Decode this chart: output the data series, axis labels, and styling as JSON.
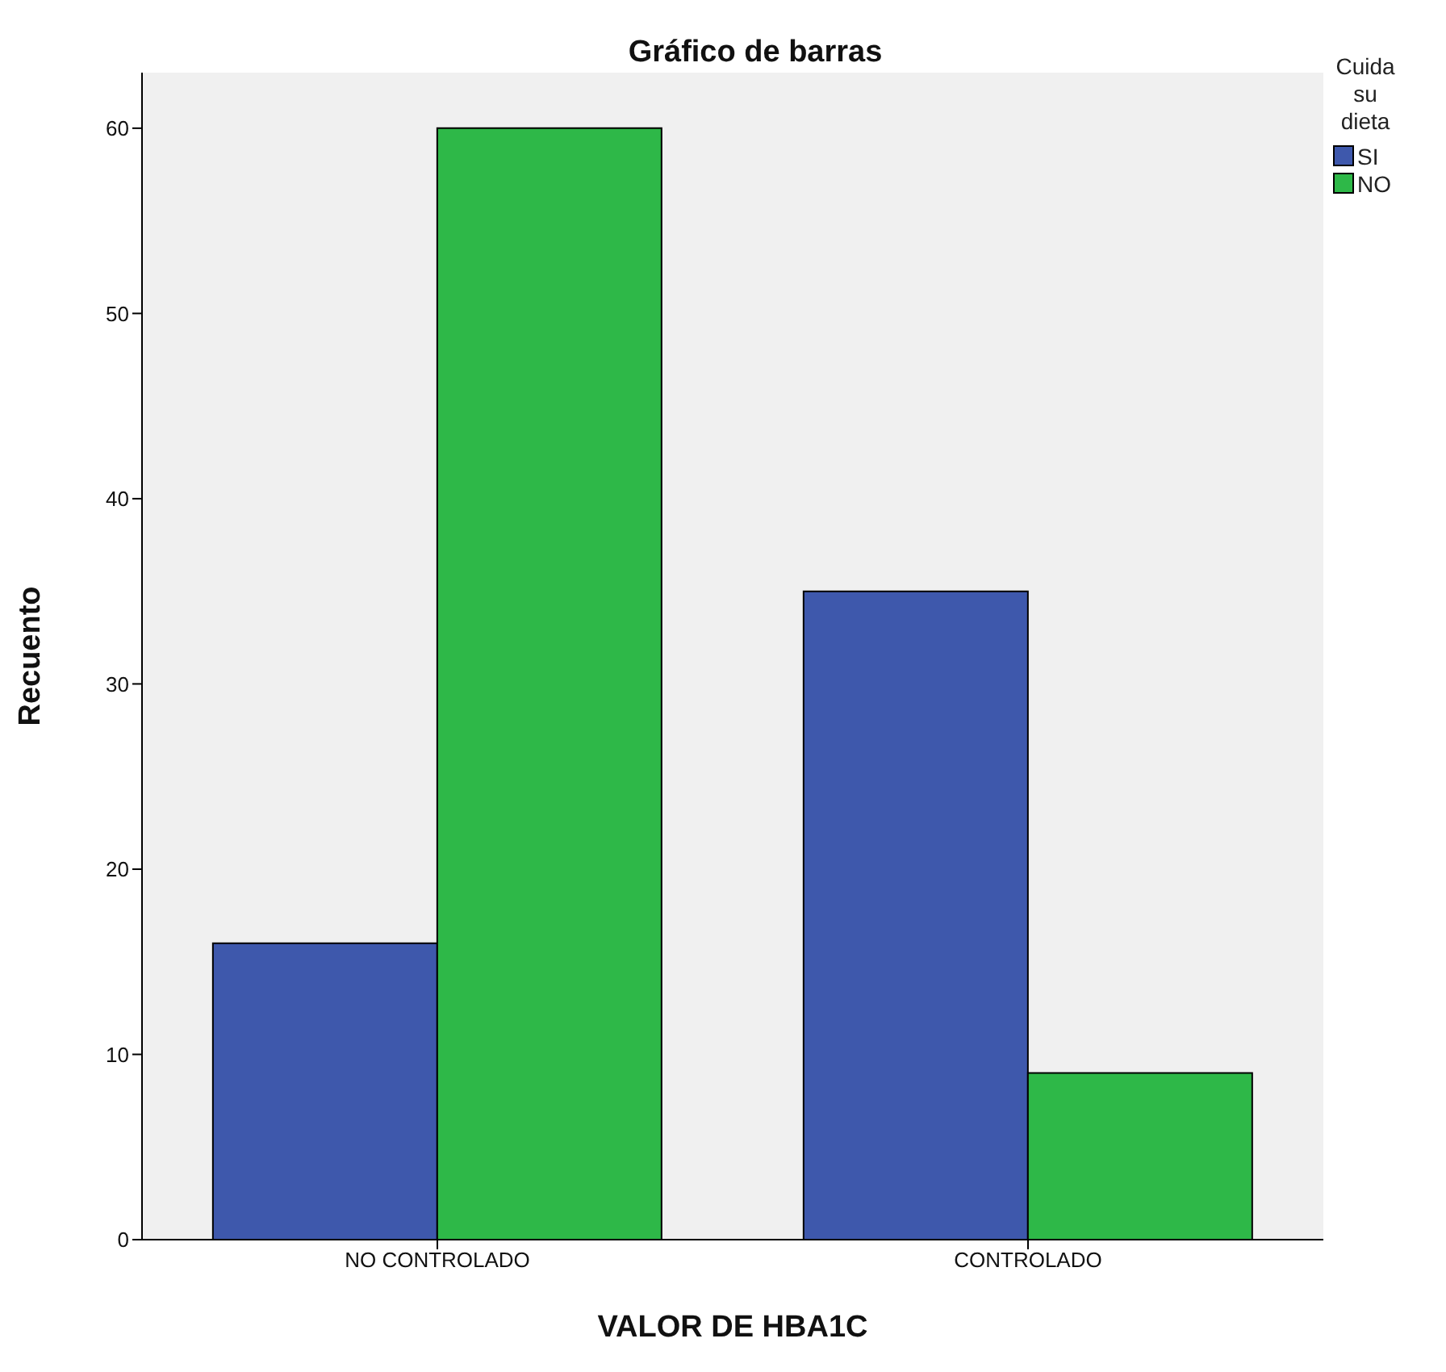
{
  "chart_data": {
    "type": "bar",
    "title": "Gráfico de barras",
    "xlabel": "VALOR DE HBA1C",
    "ylabel": "Recuento",
    "legend_title": "Cuida su dieta",
    "categories": [
      "NO CONTROLADO",
      "CONTROLADO"
    ],
    "series": [
      {
        "name": "SI",
        "color": "#3e58ac",
        "values": [
          16,
          35
        ]
      },
      {
        "name": "NO",
        "color": "#2eb848",
        "values": [
          60,
          9
        ]
      }
    ],
    "ylim": [
      0,
      63
    ],
    "yticks": [
      0,
      10,
      20,
      30,
      40,
      50,
      60
    ],
    "grid": false,
    "legend": "top right"
  }
}
